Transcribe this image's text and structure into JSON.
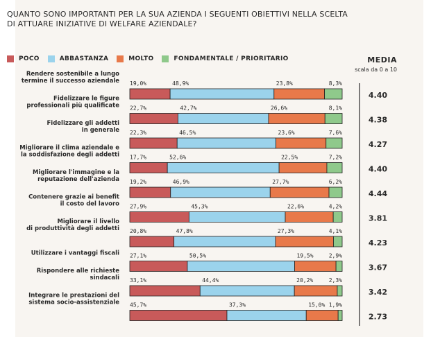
{
  "chart_data": {
    "type": "bar",
    "stacked": true,
    "orientation": "horizontal",
    "title": "QUANTO SONO IMPORTANTI PER LA SUA AZIENDA I SEGUENTI OBIETTIVI NELLA SCELTA\nDI ATTUARE INIZIATIVE DI WELFARE AZIENDALE?",
    "legend_position": "top",
    "series": [
      {
        "name": "POCO",
        "color": "#c85a5a",
        "values": [
          19.0,
          22.7,
          22.3,
          17.7,
          19.2,
          27.9,
          20.8,
          27.1,
          33.1,
          45.7
        ]
      },
      {
        "name": "ABBASTANZA",
        "color": "#9bd3ec",
        "values": [
          48.9,
          42.7,
          46.5,
          52.6,
          46.9,
          45.3,
          47.8,
          50.5,
          44.4,
          37.3
        ]
      },
      {
        "name": "MOLTO",
        "color": "#e8794a",
        "values": [
          23.8,
          26.6,
          23.6,
          22.5,
          27.7,
          22.6,
          27.3,
          19.5,
          20.2,
          15.0
        ]
      },
      {
        "name": "FONDAMENTALE / PRIORITARIO",
        "color": "#8fc98b",
        "values": [
          8.3,
          8.1,
          7.6,
          7.2,
          6.2,
          4.2,
          4.1,
          2.9,
          2.3,
          1.9
        ]
      }
    ],
    "value_labels": [
      [
        "19,0%",
        "48,9%",
        "23,8%",
        "8,3%"
      ],
      [
        "22,7%",
        "42,7%",
        "26,6%",
        "8,1%"
      ],
      [
        "22,3%",
        "46,5%",
        "23,6%",
        "7,6%"
      ],
      [
        "17,7%",
        "52,6%",
        "22,5%",
        "7,2%"
      ],
      [
        "19,2%",
        "46,9%",
        "27,7%",
        "6,2%"
      ],
      [
        "27,9%",
        "45,3%",
        "22,6%",
        "4,2%"
      ],
      [
        "20,8%",
        "47,8%",
        "27,3%",
        "4,1%"
      ],
      [
        "27,1%",
        "50,5%",
        "19,5%",
        "2,9%"
      ],
      [
        "33,1%",
        "44,4%",
        "20,2%",
        "2,3%"
      ],
      [
        "45,7%",
        "37,3%",
        "15,0%",
        "1,9%"
      ]
    ],
    "categories": [
      [
        "Rendere sostenibile a lungo",
        "termine il successo aziendale"
      ],
      [
        "Fidelizzare le figure",
        "professionali più qualificate"
      ],
      [
        "Fidelizzare gli addetti",
        "in generale"
      ],
      [
        "Migliorare il clima aziendale e",
        "la soddisfazione degli addetti"
      ],
      [
        "Migliorare l'immagine e la",
        "reputazione dell'azienda"
      ],
      [
        "Contenere grazie ai benefit",
        "il costo del lavoro"
      ],
      [
        "Migliorare il livello",
        "di produttività degli addetti"
      ],
      [
        "Utilizzare i vantaggi fiscali"
      ],
      [
        "Rispondere alle richieste",
        "sindacali"
      ],
      [
        "Integrare le prestazioni del",
        "sistema socio-assistenziale"
      ]
    ],
    "media": {
      "title": "MEDIA",
      "subtitle": "scala da 0 a 10",
      "labels": [
        "4.40",
        "4.38",
        "4.27",
        "4.40",
        "4.44",
        "3.81",
        "4.23",
        "3.67",
        "3.42",
        "2.73"
      ]
    }
  }
}
